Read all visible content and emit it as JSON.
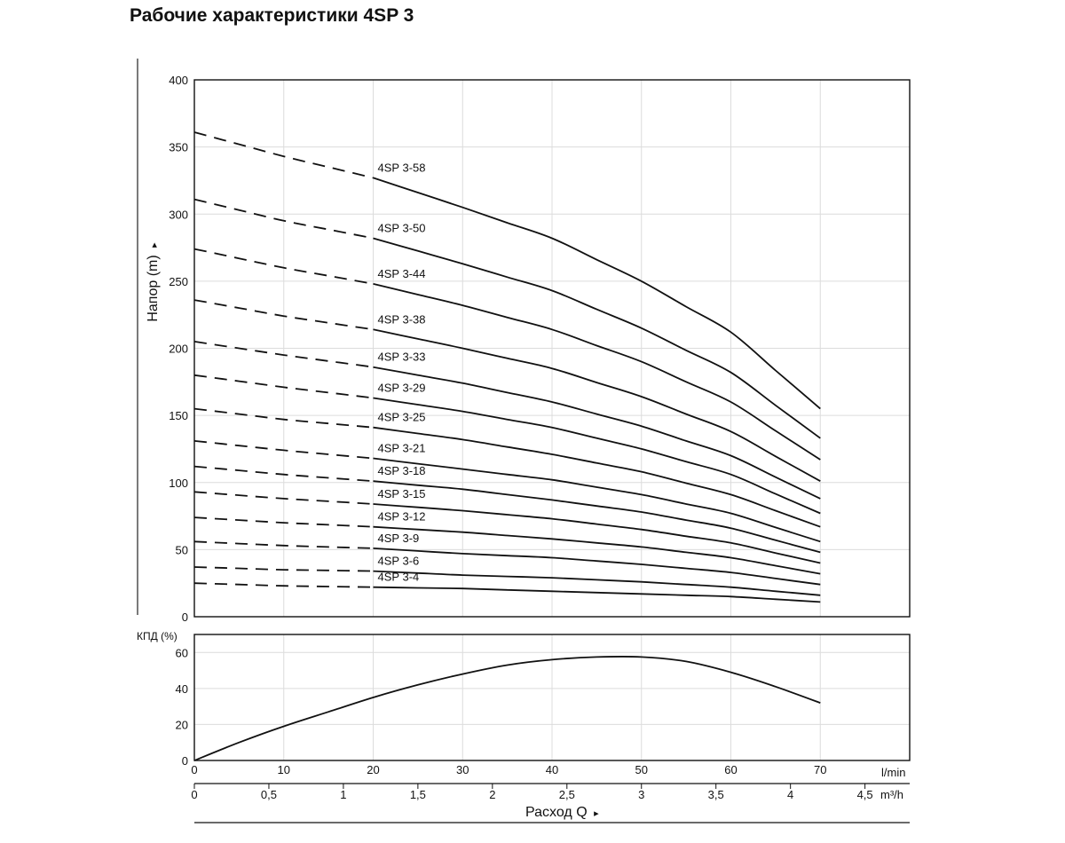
{
  "title": "Рабочие характеристики 4SP 3",
  "chart_data": [
    {
      "type": "line",
      "name": "head",
      "ylabel": "Напор (m)",
      "ylabel_arrow": "▸",
      "ylim": [
        0,
        400
      ],
      "yticks": [
        0,
        50,
        100,
        150,
        200,
        250,
        300,
        350,
        400
      ],
      "xlim": [
        0,
        80
      ],
      "x_grid": [
        0,
        10,
        20,
        30,
        40,
        50,
        60,
        70,
        80
      ],
      "grid": true,
      "curve_note": "dashed segment from Q=0 to Q=20 l/min, solid from Q=20 to Q=70 l/min",
      "series": [
        {
          "name": "4SP 3-58",
          "x": [
            0,
            10,
            20,
            30,
            40,
            50,
            60,
            70
          ],
          "y": [
            361,
            343,
            327,
            305,
            282,
            250,
            212,
            155
          ]
        },
        {
          "name": "4SP 3-50",
          "x": [
            0,
            10,
            20,
            30,
            40,
            50,
            60,
            70
          ],
          "y": [
            311,
            295,
            282,
            263,
            243,
            215,
            182,
            133
          ]
        },
        {
          "name": "4SP 3-44",
          "x": [
            0,
            10,
            20,
            30,
            40,
            50,
            60,
            70
          ],
          "y": [
            274,
            260,
            248,
            232,
            214,
            190,
            160,
            117
          ]
        },
        {
          "name": "4SP 3-38",
          "x": [
            0,
            10,
            20,
            30,
            40,
            50,
            60,
            70
          ],
          "y": [
            236,
            224,
            214,
            200,
            185,
            164,
            138,
            101
          ]
        },
        {
          "name": "4SP 3-33",
          "x": [
            0,
            10,
            20,
            30,
            40,
            50,
            60,
            70
          ],
          "y": [
            205,
            195,
            186,
            174,
            160,
            142,
            120,
            88
          ]
        },
        {
          "name": "4SP 3-29",
          "x": [
            0,
            10,
            20,
            30,
            40,
            50,
            60,
            70
          ],
          "y": [
            180,
            171,
            163,
            153,
            141,
            125,
            106,
            77
          ]
        },
        {
          "name": "4SP 3-25",
          "x": [
            0,
            10,
            20,
            30,
            40,
            50,
            60,
            70
          ],
          "y": [
            155,
            147,
            141,
            132,
            121,
            108,
            91,
            67
          ]
        },
        {
          "name": "4SP 3-21",
          "x": [
            0,
            10,
            20,
            30,
            40,
            50,
            60,
            70
          ],
          "y": [
            131,
            124,
            118,
            110,
            102,
            91,
            77,
            56
          ]
        },
        {
          "name": "4SP 3-18",
          "x": [
            0,
            10,
            20,
            30,
            40,
            50,
            60,
            70
          ],
          "y": [
            112,
            106,
            101,
            95,
            87,
            78,
            66,
            48
          ]
        },
        {
          "name": "4SP 3-15",
          "x": [
            0,
            10,
            20,
            30,
            40,
            50,
            60,
            70
          ],
          "y": [
            93,
            88,
            84,
            79,
            73,
            65,
            55,
            40
          ]
        },
        {
          "name": "4SP 3-12",
          "x": [
            0,
            10,
            20,
            30,
            40,
            50,
            60,
            70
          ],
          "y": [
            74,
            70,
            67,
            63,
            58,
            52,
            44,
            32
          ]
        },
        {
          "name": "4SP 3-9",
          "x": [
            0,
            10,
            20,
            30,
            40,
            50,
            60,
            70
          ],
          "y": [
            56,
            53,
            51,
            47,
            44,
            39,
            33,
            24
          ]
        },
        {
          "name": "4SP 3-6",
          "x": [
            0,
            10,
            20,
            30,
            40,
            50,
            60,
            70
          ],
          "y": [
            37,
            35,
            34,
            31,
            29,
            26,
            22,
            16
          ]
        },
        {
          "name": "4SP 3-4",
          "x": [
            0,
            10,
            20,
            30,
            40,
            50,
            60,
            70
          ],
          "y": [
            25,
            23,
            22,
            21,
            19,
            17,
            15,
            11
          ]
        }
      ]
    },
    {
      "type": "line",
      "name": "efficiency",
      "ylabel": "КПД (%)",
      "ylim": [
        0,
        70
      ],
      "yticks": [
        0,
        20,
        40,
        60
      ],
      "xlim": [
        0,
        80
      ],
      "grid": true,
      "series": [
        {
          "x": [
            0,
            5,
            10,
            15,
            20,
            25,
            30,
            35,
            40,
            45,
            50,
            55,
            60,
            65,
            70
          ],
          "y": [
            0,
            10,
            19,
            27,
            35,
            42,
            48,
            53,
            56,
            57.5,
            57.5,
            55,
            49,
            41,
            32
          ]
        }
      ],
      "xaxis_lmin": {
        "ticks": [
          0,
          10,
          20,
          30,
          40,
          50,
          60,
          70
        ],
        "unit": "l/min"
      },
      "xaxis_m3h": {
        "ticks": [
          0,
          0.5,
          1,
          1.5,
          2,
          2.5,
          3,
          3.5,
          4,
          4.5
        ],
        "tick_labels": [
          "0",
          "0,5",
          "1",
          "1,5",
          "2",
          "2,5",
          "3",
          "3,5",
          "4",
          "4,5"
        ],
        "unit": "m³/h"
      },
      "xlabel": "Расход Q",
      "xlabel_arrow": "▸"
    }
  ]
}
